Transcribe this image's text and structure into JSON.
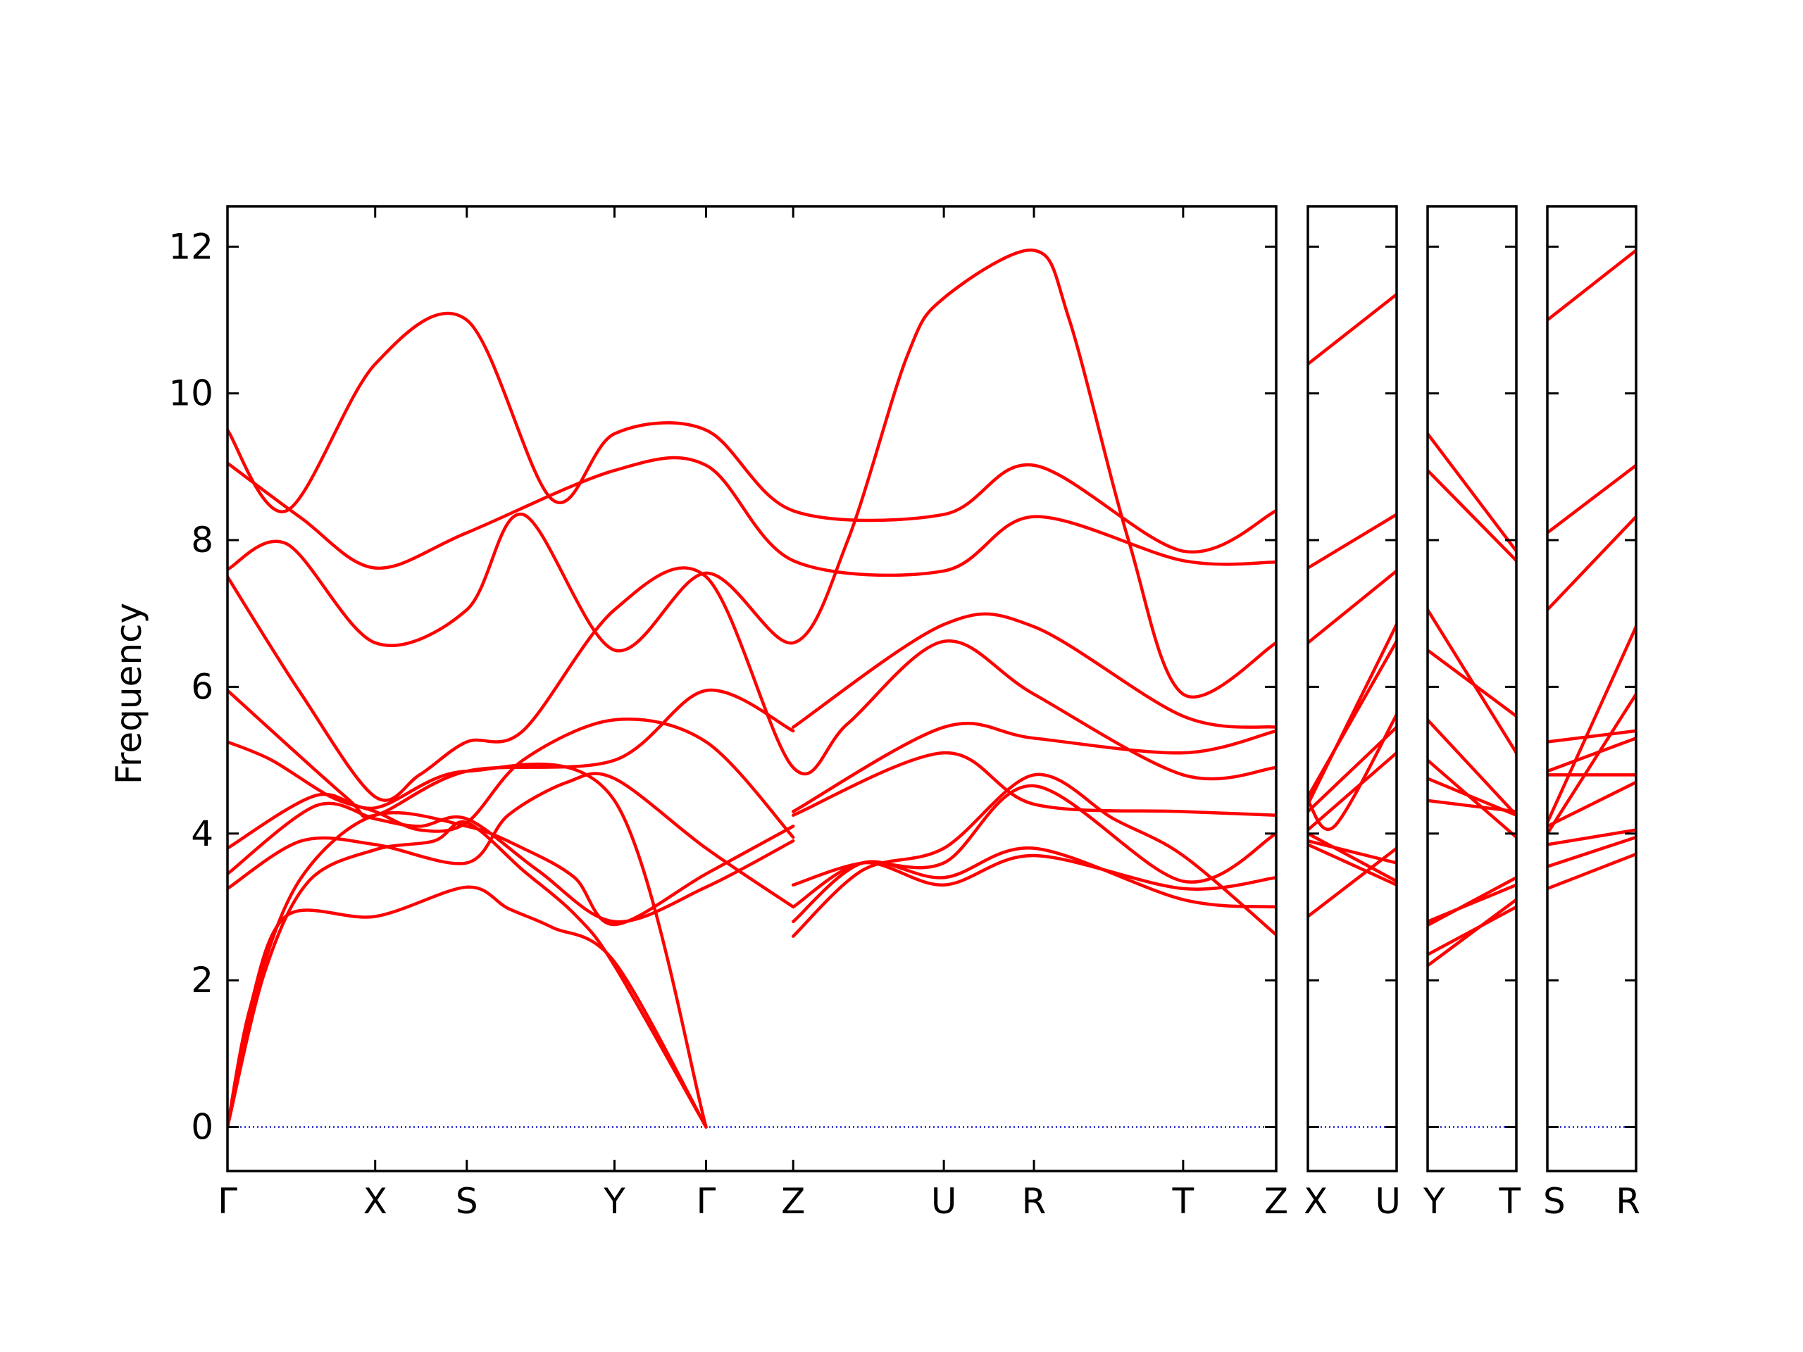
{
  "chart_data": {
    "type": "line",
    "title": "",
    "xlabel": "",
    "ylabel": "Frequency",
    "ylim": [
      -0.6,
      12.55
    ],
    "yticks": [
      0,
      2,
      4,
      6,
      8,
      10,
      12
    ],
    "grid": false,
    "legend": "none",
    "colors": {
      "bands": "#ff0000",
      "zero": "#0000cc",
      "axes": "#000000"
    },
    "panels": [
      {
        "labels": [
          "Γ",
          "X",
          "S",
          "Y",
          "Γ",
          "Z",
          "U",
          "R",
          "T",
          "Z"
        ],
        "kpos": [
          0,
          1,
          1.62,
          2.62,
          3.24,
          3.83,
          4.85,
          5.46,
          6.47,
          7.1
        ],
        "bands": [
          [
            [
              0,
              0
            ],
            [
              0.15,
              1.6
            ],
            [
              0.4,
              2.88
            ],
            [
              1,
              2.87
            ],
            [
              1.62,
              3.27
            ],
            [
              1.9,
              2.98
            ],
            [
              2.2,
              2.72
            ],
            [
              2.62,
              2.25
            ],
            [
              3.24,
              0
            ]
          ],
          [
            [
              0,
              0
            ],
            [
              0.25,
              2.1
            ],
            [
              0.55,
              3.35
            ],
            [
              1,
              3.78
            ],
            [
              1.4,
              3.9
            ],
            [
              1.62,
              4.15
            ],
            [
              2.0,
              3.5
            ],
            [
              2.35,
              2.9
            ],
            [
              2.62,
              2.2
            ],
            [
              3.24,
              0
            ]
          ],
          [
            [
              0,
              0
            ],
            [
              0.2,
              1.9
            ],
            [
              0.5,
              3.4
            ],
            [
              1,
              4.25
            ],
            [
              1.62,
              4.1
            ],
            [
              2.0,
              3.8
            ],
            [
              2.35,
              3.4
            ],
            [
              2.62,
              2.76
            ],
            [
              3.24,
              3.45
            ],
            [
              3.83,
              4.1
            ]
          ],
          [
            [
              0,
              3.25
            ],
            [
              0.5,
              3.9
            ],
            [
              1,
              3.85
            ],
            [
              1.62,
              3.6
            ],
            [
              1.9,
              4.25
            ],
            [
              2.3,
              4.7
            ],
            [
              2.62,
              4.75
            ],
            [
              3.24,
              3.8
            ],
            [
              3.83,
              3.0
            ]
          ],
          [
            [
              0,
              3.45
            ],
            [
              0.6,
              4.38
            ],
            [
              1,
              4.2
            ],
            [
              1.3,
              4.1
            ],
            [
              1.62,
              4.2
            ],
            [
              2.1,
              3.5
            ],
            [
              2.62,
              2.8
            ],
            [
              3.24,
              3.27
            ],
            [
              3.83,
              3.9
            ]
          ],
          [
            [
              0,
              3.8
            ],
            [
              0.6,
              4.52
            ],
            [
              1,
              4.35
            ],
            [
              1.62,
              4.85
            ],
            [
              2.62,
              4.45
            ],
            [
              3.24,
              0
            ]
          ],
          [
            [
              0,
              5.25
            ],
            [
              0.3,
              5.0
            ],
            [
              0.7,
              4.5
            ],
            [
              1,
              4.3
            ],
            [
              1.3,
              4.05
            ],
            [
              1.62,
              4.15
            ],
            [
              2.0,
              5.0
            ],
            [
              2.62,
              5.55
            ],
            [
              3.24,
              5.25
            ],
            [
              3.83,
              3.95
            ]
          ],
          [
            [
              0,
              5.95
            ],
            [
              0.8,
              4.5
            ],
            [
              1,
              4.25
            ],
            [
              1.62,
              4.85
            ],
            [
              2.62,
              5.0
            ],
            [
              3.24,
              5.95
            ],
            [
              3.83,
              5.4
            ]
          ],
          [
            [
              0,
              7.5
            ],
            [
              0.5,
              5.9
            ],
            [
              1,
              4.5
            ],
            [
              1.3,
              4.8
            ],
            [
              1.62,
              5.25
            ],
            [
              2.0,
              5.4
            ],
            [
              2.62,
              7.05
            ],
            [
              3.24,
              7.5
            ],
            [
              3.83,
              4.9
            ],
            [
              4.2,
              5.5
            ],
            [
              4.85,
              6.62
            ],
            [
              5.46,
              5.9
            ],
            [
              6.47,
              4.8
            ],
            [
              7.1,
              4.9
            ]
          ],
          [
            [
              0,
              7.6
            ],
            [
              0.4,
              7.95
            ],
            [
              1,
              6.6
            ],
            [
              1.62,
              7.05
            ],
            [
              2.0,
              8.35
            ],
            [
              2.62,
              6.5
            ],
            [
              3.24,
              7.55
            ],
            [
              3.83,
              6.6
            ],
            [
              4.2,
              8.0
            ],
            [
              4.6,
              10.5
            ],
            [
              4.85,
              11.3
            ],
            [
              5.46,
              11.95
            ],
            [
              5.7,
              11.0
            ],
            [
              6.1,
              8.0
            ],
            [
              6.47,
              5.9
            ],
            [
              7.1,
              6.6
            ]
          ],
          [
            [
              0,
              9.05
            ],
            [
              0.5,
              8.3
            ],
            [
              1,
              7.62
            ],
            [
              1.62,
              8.1
            ],
            [
              2.62,
              8.95
            ],
            [
              3.24,
              9.02
            ],
            [
              3.83,
              7.72
            ],
            [
              4.85,
              7.58
            ],
            [
              5.46,
              8.32
            ],
            [
              6.47,
              7.72
            ],
            [
              7.1,
              7.7
            ]
          ],
          [
            [
              0,
              9.5
            ],
            [
              0.4,
              8.4
            ],
            [
              1,
              10.4
            ],
            [
              1.62,
              11.0
            ],
            [
              2.2,
              8.55
            ],
            [
              2.62,
              9.45
            ],
            [
              3.24,
              9.5
            ],
            [
              3.83,
              8.4
            ],
            [
              4.85,
              8.35
            ],
            [
              5.46,
              9.02
            ],
            [
              6.47,
              7.85
            ],
            [
              7.1,
              8.4
            ]
          ],
          [
            [
              3.83,
              2.6
            ],
            [
              4.3,
              3.5
            ],
            [
              4.85,
              3.8
            ],
            [
              5.46,
              4.8
            ],
            [
              6.0,
              4.2
            ],
            [
              6.47,
              3.7
            ],
            [
              7.1,
              2.62
            ]
          ],
          [
            [
              3.83,
              2.8
            ],
            [
              4.3,
              3.6
            ],
            [
              4.85,
              3.4
            ],
            [
              5.46,
              3.8
            ],
            [
              6.47,
              3.1
            ],
            [
              7.1,
              3.0
            ]
          ],
          [
            [
              3.83,
              3.0
            ],
            [
              4.3,
              3.6
            ],
            [
              4.85,
              3.3
            ],
            [
              5.46,
              3.7
            ],
            [
              6.47,
              3.25
            ],
            [
              7.1,
              3.4
            ]
          ],
          [
            [
              3.83,
              3.3
            ],
            [
              4.3,
              3.6
            ],
            [
              4.85,
              3.6
            ],
            [
              5.46,
              4.65
            ],
            [
              6.47,
              3.35
            ],
            [
              7.1,
              4.0
            ]
          ],
          [
            [
              3.83,
              4.25
            ],
            [
              4.85,
              5.1
            ],
            [
              5.46,
              4.4
            ],
            [
              6.47,
              4.3
            ],
            [
              7.1,
              4.25
            ]
          ],
          [
            [
              3.83,
              4.3
            ],
            [
              4.85,
              5.45
            ],
            [
              5.46,
              5.3
            ],
            [
              6.47,
              5.1
            ],
            [
              7.1,
              5.4
            ]
          ],
          [
            [
              3.83,
              5.45
            ],
            [
              4.85,
              6.85
            ],
            [
              5.46,
              6.82
            ],
            [
              6.47,
              5.6
            ],
            [
              7.1,
              5.45
            ]
          ]
        ]
      },
      {
        "labels": [
          "X",
          "U"
        ],
        "kpos": [
          0,
          1
        ],
        "bands": [
          [
            [
              0,
              10.4
            ],
            [
              1,
              11.35
            ]
          ],
          [
            [
              0,
              7.62
            ],
            [
              1,
              8.35
            ]
          ],
          [
            [
              0,
              6.6
            ],
            [
              1,
              7.58
            ]
          ],
          [
            [
              0,
              4.4
            ],
            [
              1,
              6.85
            ]
          ],
          [
            [
              0,
              4.5
            ],
            [
              1,
              6.62
            ]
          ],
          [
            [
              0,
              4.45
            ],
            [
              0.3,
              4.1
            ],
            [
              1,
              5.62
            ]
          ],
          [
            [
              0,
              4.3
            ],
            [
              1,
              5.45
            ]
          ],
          [
            [
              0,
              4.05
            ],
            [
              1,
              5.1
            ]
          ],
          [
            [
              0,
              2.87
            ],
            [
              1,
              3.8
            ]
          ],
          [
            [
              0,
              3.9
            ],
            [
              1,
              3.6
            ]
          ],
          [
            [
              0,
              4.0
            ],
            [
              1,
              3.35
            ]
          ],
          [
            [
              0,
              3.85
            ],
            [
              1,
              3.3
            ]
          ]
        ]
      },
      {
        "labels": [
          "Y",
          "T"
        ],
        "kpos": [
          0,
          1
        ],
        "bands": [
          [
            [
              0,
              9.45
            ],
            [
              1,
              7.85
            ]
          ],
          [
            [
              0,
              8.95
            ],
            [
              1,
              7.72
            ]
          ],
          [
            [
              0,
              7.05
            ],
            [
              1,
              5.1
            ]
          ],
          [
            [
              0,
              6.5
            ],
            [
              1,
              5.6
            ]
          ],
          [
            [
              0,
              5.55
            ],
            [
              1,
              4.25
            ]
          ],
          [
            [
              0,
              5.0
            ],
            [
              1,
              3.95
            ]
          ],
          [
            [
              0,
              4.75
            ],
            [
              1,
              4.25
            ]
          ],
          [
            [
              0,
              4.45
            ],
            [
              1,
              4.3
            ]
          ],
          [
            [
              0,
              2.8
            ],
            [
              1,
              3.3
            ]
          ],
          [
            [
              0,
              2.75
            ],
            [
              1,
              3.4
            ]
          ],
          [
            [
              0,
              2.35
            ],
            [
              1,
              3.0
            ]
          ],
          [
            [
              0,
              2.2
            ],
            [
              1,
              3.1
            ]
          ]
        ]
      },
      {
        "labels": [
          "S",
          "R"
        ],
        "kpos": [
          0,
          1
        ],
        "bands": [
          [
            [
              0,
              11.0
            ],
            [
              1,
              11.95
            ]
          ],
          [
            [
              0,
              8.1
            ],
            [
              1,
              9.02
            ]
          ],
          [
            [
              0,
              7.05
            ],
            [
              1,
              8.32
            ]
          ],
          [
            [
              0,
              4.15
            ],
            [
              1,
              6.82
            ]
          ],
          [
            [
              0,
              4.0
            ],
            [
              1,
              5.9
            ]
          ],
          [
            [
              0,
              5.25
            ],
            [
              1,
              5.4
            ]
          ],
          [
            [
              0,
              4.85
            ],
            [
              1,
              5.3
            ]
          ],
          [
            [
              0,
              4.8
            ],
            [
              1,
              4.8
            ]
          ],
          [
            [
              0,
              4.1
            ],
            [
              1,
              4.7
            ]
          ],
          [
            [
              0,
              3.85
            ],
            [
              1,
              4.05
            ]
          ],
          [
            [
              0,
              3.55
            ],
            [
              1,
              3.95
            ]
          ],
          [
            [
              0,
              3.25
            ],
            [
              1,
              3.72
            ]
          ]
        ]
      }
    ]
  }
}
